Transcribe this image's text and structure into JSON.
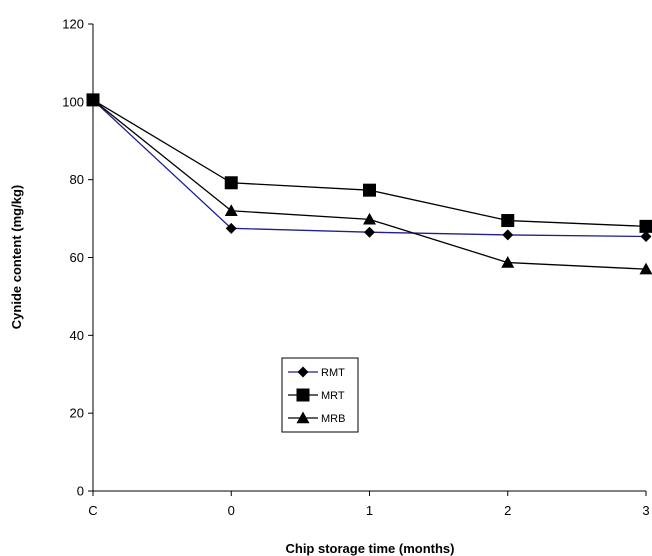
{
  "chart_data": {
    "type": "line",
    "categories": [
      "C",
      "0",
      "1",
      "2",
      "3"
    ],
    "xlabel": "Chip storage time (months)",
    "ylabel": "Cynide content (mg/kg)",
    "ylim": [
      0,
      120
    ],
    "yticks": [
      0,
      20,
      40,
      60,
      80,
      100,
      120
    ],
    "grid": false,
    "legend_position": "lower-left",
    "series": [
      {
        "name": "RMT",
        "marker": "diamond",
        "color": "#1f1f8f",
        "values": [
          100.5,
          67.5,
          66.5,
          65.8,
          65.4
        ]
      },
      {
        "name": "MRT",
        "marker": "square",
        "color": "#000000",
        "values": [
          100.5,
          79.2,
          77.3,
          69.5,
          68.0
        ]
      },
      {
        "name": "MRB",
        "marker": "triangle",
        "color": "#000000",
        "values": [
          100.5,
          72.0,
          69.8,
          58.7,
          57.0
        ]
      }
    ]
  }
}
